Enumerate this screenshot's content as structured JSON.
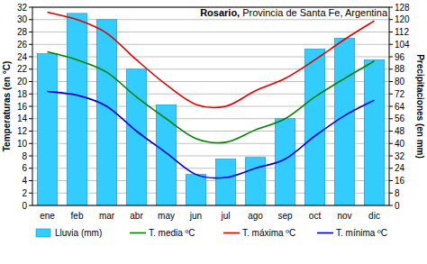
{
  "chart_data": {
    "type": "bar",
    "title": "Rosario,",
    "subtitle": "Provincia de Santa Fe, Argentina",
    "ylabel": "Temperaturas (en °C)",
    "y2label": "Precipitaciones (en mm)",
    "categories": [
      "ene",
      "feb",
      "mar",
      "abr",
      "may",
      "jun",
      "jul",
      "ago",
      "sep",
      "oct",
      "nov",
      "dic"
    ],
    "series": [
      {
        "name": "Lluvia (mm)",
        "type": "bar",
        "axis": "y2",
        "color": "#33ccff",
        "values": [
          98,
          124,
          120,
          88,
          65,
          20,
          30,
          31,
          56,
          101,
          108,
          94
        ]
      },
      {
        "name": "T. media ºC",
        "type": "line",
        "color": "#008000",
        "values": [
          24.8,
          23.5,
          21.5,
          17.5,
          14,
          10.8,
          10.2,
          12.2,
          14,
          17.5,
          20.5,
          23.3
        ]
      },
      {
        "name": "T. máxima ºC",
        "type": "line",
        "color": "#e00000",
        "values": [
          31.2,
          30,
          27.8,
          23.5,
          19.5,
          16.3,
          16,
          18.5,
          20.5,
          23.5,
          26.8,
          29.8
        ]
      },
      {
        "name": "T. mínima ºC",
        "type": "line",
        "color": "#0000cc",
        "values": [
          18.4,
          17.8,
          16,
          12,
          8.5,
          5,
          4.5,
          6,
          7.5,
          11.2,
          14.5,
          17
        ]
      }
    ],
    "ylim": [
      0,
      32
    ],
    "yticks": [
      0,
      2,
      4,
      6,
      8,
      10,
      12,
      14,
      16,
      18,
      20,
      22,
      24,
      26,
      28,
      30,
      32
    ],
    "y2lim": [
      0,
      128
    ],
    "y2ticks": [
      0,
      8,
      16,
      24,
      32,
      40,
      48,
      56,
      64,
      72,
      80,
      88,
      96,
      104,
      112,
      120,
      128
    ],
    "grid": true,
    "legend": "bottom"
  }
}
